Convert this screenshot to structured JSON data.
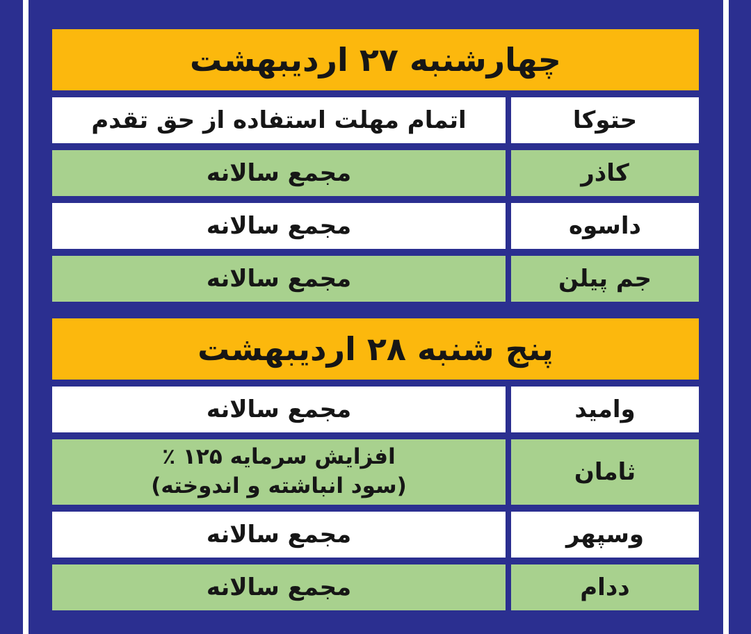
{
  "colors": {
    "page_background": "#2B2F90",
    "header_background": "#FCB80D",
    "row_green": "#A8D18E",
    "row_white": "#FFFFFF",
    "text": "#161616",
    "side_stripe": "#FFFFFF"
  },
  "sections": [
    {
      "header": "چهارشنبه ۲۷ اردیبهشت",
      "rows": [
        {
          "ticker": "حتوکا",
          "event": "اتمام مهلت استفاده از حق تقدم"
        },
        {
          "ticker": "کاذر",
          "event": "مجمع سالانه"
        },
        {
          "ticker": "داسوه",
          "event": "مجمع سالانه"
        },
        {
          "ticker": "جم پیلن",
          "event": "مجمع سالانه"
        }
      ]
    },
    {
      "header": "پنج شنبه ۲۸ اردیبهشت",
      "rows": [
        {
          "ticker": "وامید",
          "event": "مجمع سالانه"
        },
        {
          "ticker": "ثامان",
          "event": "افزایش سرمایه ۱۲۵ ٪",
          "event_line2": "(سود انباشته و اندوخته)"
        },
        {
          "ticker": "وسپهر",
          "event": "مجمع سالانه"
        },
        {
          "ticker": "ددام",
          "event": "مجمع سالانه"
        }
      ]
    }
  ]
}
